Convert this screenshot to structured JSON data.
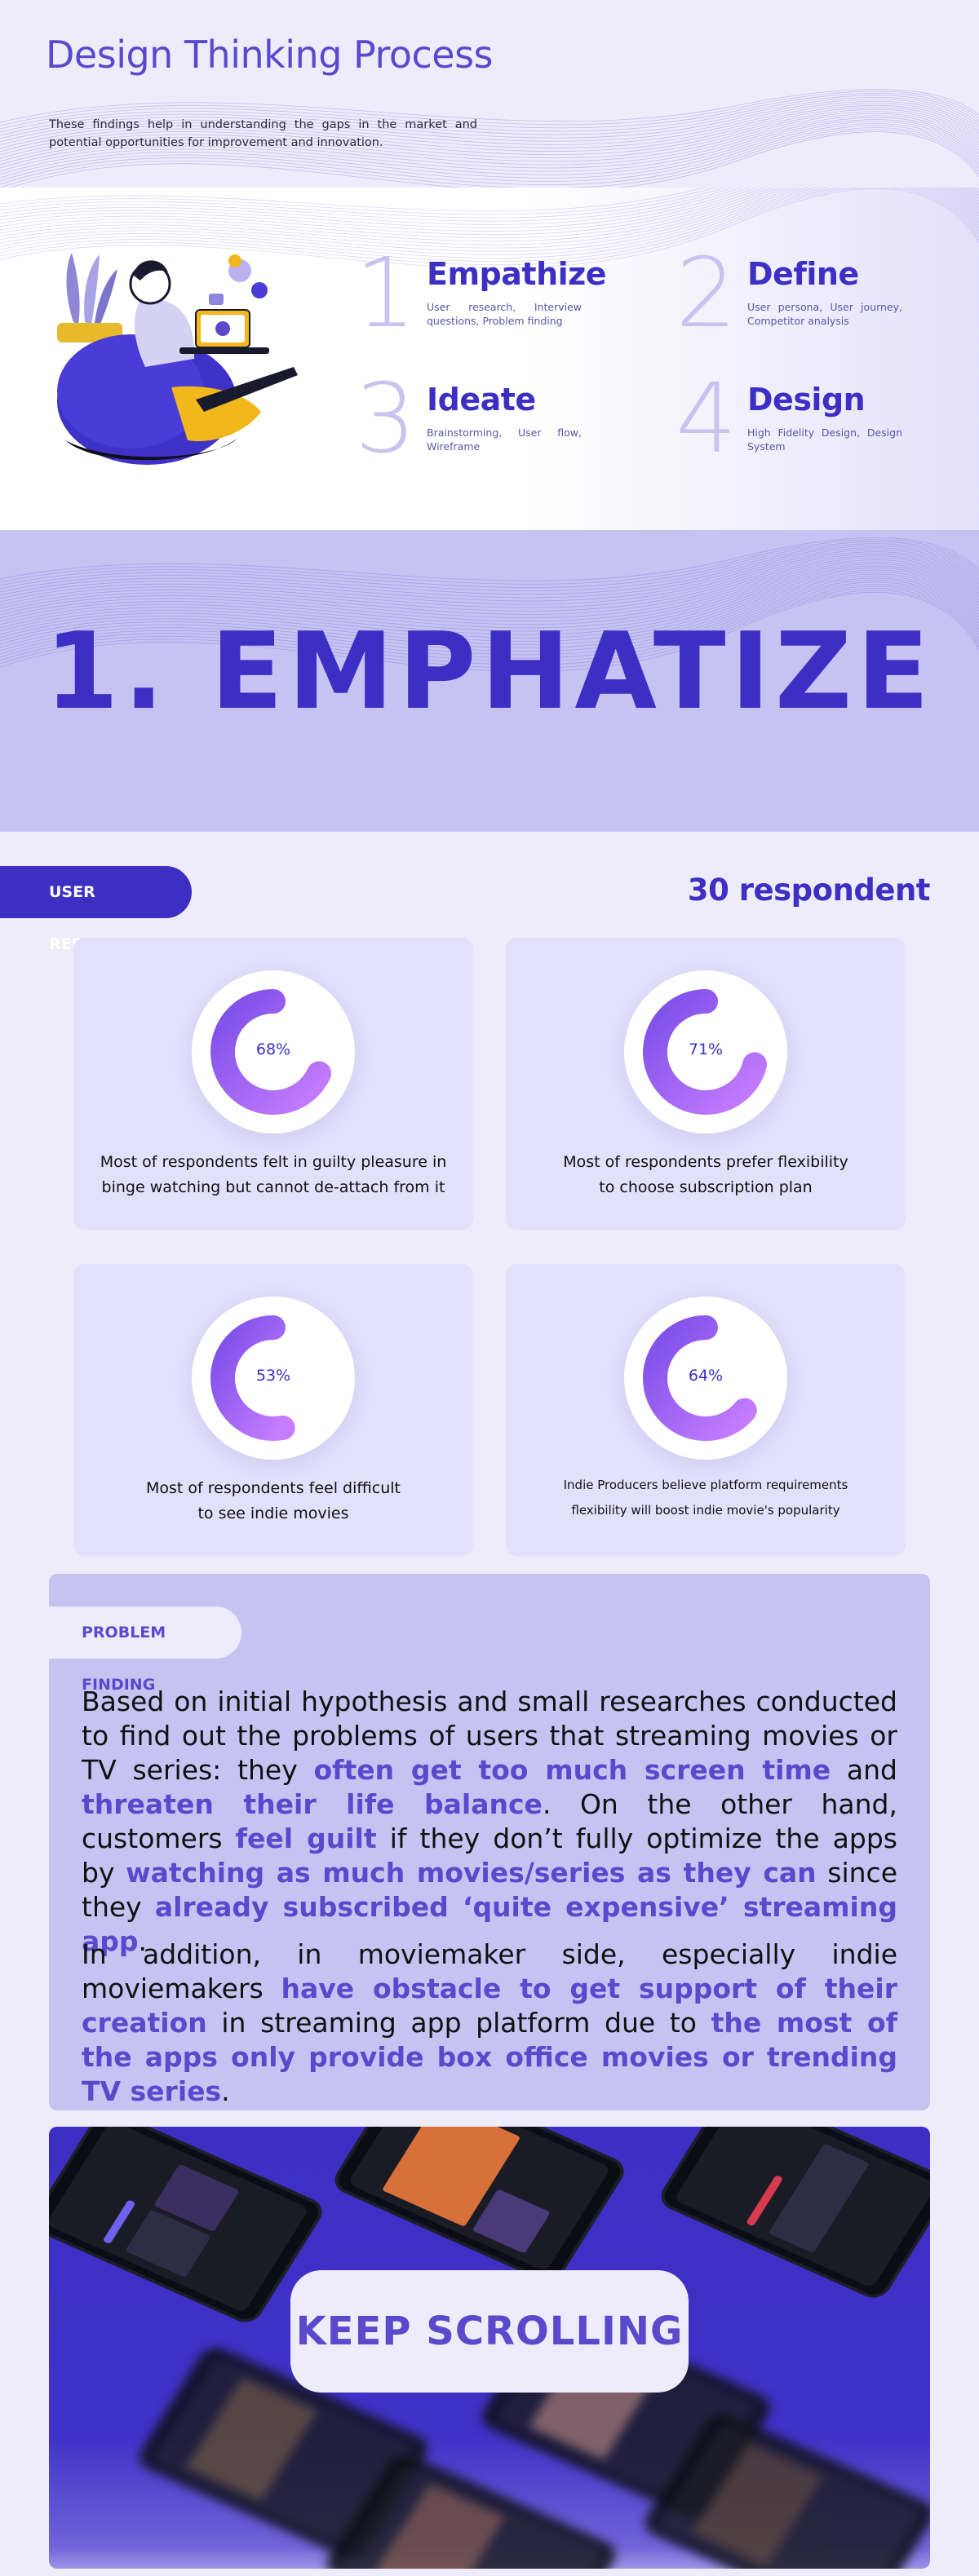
{
  "header": {
    "title": "Design Thinking Process",
    "subtitle": "These findings help in understanding the gaps in the market and potential opportunities for improvement and innovation."
  },
  "process": {
    "steps": [
      {
        "number": "1",
        "title": "Empathize",
        "desc": "User research, Interview questions, Problem finding"
      },
      {
        "number": "2",
        "title": "Define",
        "desc": "User persona, User journey, Competitor analysis"
      },
      {
        "number": "3",
        "title": "Ideate",
        "desc": "Brainstorming, User flow, Wireframe"
      },
      {
        "number": "4",
        "title": "Design",
        "desc": "High Fidelity Design, Design System"
      }
    ]
  },
  "hero": {
    "title": "1. EMPHATIZE"
  },
  "research": {
    "label": "USER RESEARCH",
    "respondents": "30 respondent",
    "cards": [
      {
        "percent": "68%",
        "value": 0.68,
        "text": "Most of respondents felt in guilty pleasure in binge watching but cannot de-attach from it"
      },
      {
        "percent": "71%",
        "value": 0.71,
        "text": "Most of respondents prefer flexibility to choose subscription plan"
      },
      {
        "percent": "53%",
        "value": 0.53,
        "text": "Most of respondents feel difficult to see indie movies"
      },
      {
        "percent": "64%",
        "value": 0.64,
        "text": "Indie Producers believe platform requirements flexibility will boost indie movie's popularity"
      }
    ]
  },
  "problem": {
    "label": "PROBLEM FINDING",
    "p1": {
      "t1": "Based on initial hypothesis and small researches conducted to find out the problems of users that streaming movies or TV series: they ",
      "h1": "often get too much screen time",
      "t2": " and ",
      "h2": "threaten their life balance",
      "t3": ". On the other hand, customers ",
      "h3": "feel guilt",
      "t4": " if they don’t fully optimize the apps by ",
      "h4": "watching as much movies/series as they can",
      "t5": " since they ",
      "h5": "already subscribed ‘quite expensive’ streaming app",
      "t6": "."
    },
    "p2": {
      "t1": "In addition, in moviemaker side, especially indie moviemakers ",
      "h1": "have obstacle to get support of their creation",
      "t2": " in streaming app platform due to ",
      "h2": "the most of the apps only provide box office movies or trending TV series",
      "t3": "."
    }
  },
  "promo": {
    "cta": "KEEP SCROLLING"
  },
  "colors": {
    "accent": "#3d2fc4",
    "accent_light": "#5a49cc",
    "lavender": "#c6c2f2",
    "card_bg": "#e2e0fb",
    "page_bg": "#eeecfb",
    "donut_start": "#c77dff",
    "donut_end": "#7b4ee8"
  }
}
